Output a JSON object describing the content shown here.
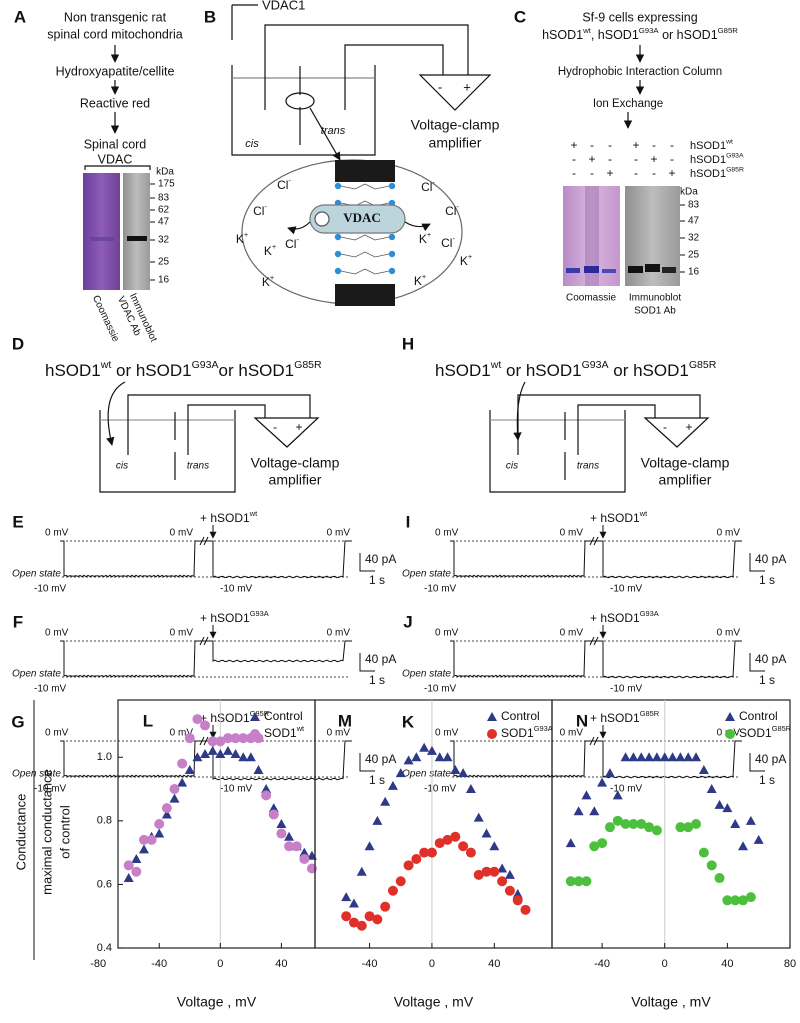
{
  "panels": {
    "A": {
      "letter": "A",
      "lines": [
        "Non transgenic rat",
        "spinal cord mitochondria",
        "Hydroxyapatite/cellite",
        "Reactive red",
        "Spinal cord",
        "VDAC"
      ],
      "kda": "kDa",
      "markers": [
        175,
        83,
        62,
        47,
        32,
        25,
        16
      ],
      "lanes": [
        "Coomassie",
        "Immunoblot",
        "VDAC Ab"
      ]
    },
    "B": {
      "letter": "B",
      "electrode": "VDAC1",
      "cis": "cis",
      "trans": "trans",
      "minus": "-",
      "plus": "+",
      "amplifier": [
        "Voltage-clamp",
        "amplifier"
      ],
      "channel": "VDAC",
      "ions": [
        {
          "text": "Cl",
          "sup": "-"
        },
        {
          "text": "Cl",
          "sup": "-"
        },
        {
          "text": "K",
          "sup": "+"
        },
        {
          "text": "K",
          "sup": "+"
        },
        {
          "text": "Cl",
          "sup": "-"
        },
        {
          "text": "K",
          "sup": "+"
        },
        {
          "text": "Cl",
          "sup": "-"
        },
        {
          "text": "Cl",
          "sup": "-"
        },
        {
          "text": "K",
          "sup": "+"
        },
        {
          "text": "Cl",
          "sup": "-"
        },
        {
          "text": "K",
          "sup": "+"
        },
        {
          "text": "K",
          "sup": "+"
        }
      ]
    },
    "C": {
      "letter": "C",
      "line1": "Sf-9 cells expressing",
      "line2": [
        {
          "text": "hSOD1",
          "sup": "wt"
        },
        {
          "text": ", hSOD1",
          "sup": "G93A"
        },
        {
          "text": " or hSOD1",
          "sup": "G85R"
        }
      ],
      "steps": [
        "Hydrophobic Interaction Column",
        "Ion Exchange"
      ],
      "signs": [
        [
          "+",
          "-",
          "-",
          "+",
          "-",
          "-"
        ],
        [
          "-",
          "+",
          "-",
          "-",
          "+",
          "-"
        ],
        [
          "-",
          "-",
          "+",
          "-",
          "-",
          "+"
        ]
      ],
      "rows": [
        {
          "text": "hSOD1",
          "sup": "wt"
        },
        {
          "text": "hSOD1",
          "sup": "G93A"
        },
        {
          "text": "hSOD1",
          "sup": "G85R"
        }
      ],
      "kda": "kDa",
      "markers": [
        83,
        47,
        32,
        25,
        16
      ],
      "lanes": [
        "Coomassie",
        "Immunoblot",
        "SOD1 Ab"
      ]
    },
    "D": {
      "letter": "D",
      "title": [
        {
          "text": "hSOD1",
          "sup": "wt"
        },
        {
          "text": " or  hSOD1",
          "sup": "G93A"
        },
        {
          "text": "or  hSOD1",
          "sup": "G85R"
        }
      ],
      "cis": "cis",
      "trans": "trans",
      "minus": "-",
      "plus": "+",
      "amplifier": [
        "Voltage-clamp",
        "amplifier"
      ]
    },
    "H": {
      "letter": "H",
      "title": [
        {
          "text": "hSOD1",
          "sup": "wt"
        },
        {
          "text": "  or  hSOD1",
          "sup": "G93A"
        },
        {
          "text": "  or hSOD1",
          "sup": "G85R"
        }
      ],
      "cis": "cis",
      "trans": "trans",
      "minus": "-",
      "plus": "+",
      "amplifier": [
        "Voltage-clamp",
        "amplifier"
      ]
    },
    "traces": [
      {
        "letter": "E",
        "zero": [
          "0 mV",
          "0 mV",
          "0 mV"
        ],
        "minus10": [
          "-10 mV",
          "-10 mV"
        ],
        "open": "Open state",
        "addition": {
          "text": "+ hSOD1",
          "sup": "wt"
        },
        "scale": [
          "40 pA",
          "1 s"
        ]
      },
      {
        "letter": "F",
        "zero": [
          "0 mV",
          "0 mV",
          "0 mV"
        ],
        "minus10": [
          "-10 mV"
        ],
        "open": "Open state",
        "addition": {
          "text": "+ hSOD1",
          "sup": "G93A"
        },
        "scale": [
          "40 pA",
          "1 s"
        ]
      },
      {
        "letter": "G",
        "zero": [
          "0 mV",
          "0 mV",
          "0 mV"
        ],
        "minus10": [
          "-10 mV",
          "-10 mV"
        ],
        "open": "Open state",
        "addition": {
          "text": "+ hSOD1",
          "sup": "G85R"
        },
        "scale": [
          "40 pA",
          "1 s"
        ]
      },
      {
        "letter": "I",
        "zero": [
          "0 mV",
          "0 mV",
          "0 mV"
        ],
        "minus10": [
          "-10 mV",
          "-10 mV"
        ],
        "open": "Open state",
        "addition": {
          "text": "+ hSOD1",
          "sup": "wt"
        },
        "scale": [
          "40 pA",
          "1 s"
        ]
      },
      {
        "letter": "J",
        "zero": [
          "0 mV",
          "0 mV",
          "0 mV"
        ],
        "minus10": [
          "-10 mV",
          "-10 mV"
        ],
        "open": "Open state",
        "addition": {
          "text": "+ hSOD1",
          "sup": "G93A"
        },
        "scale": [
          "40 pA",
          "1 s"
        ]
      },
      {
        "letter": "K",
        "zero": [
          "0 mV",
          "0 mV",
          "0 mV"
        ],
        "minus10": [
          "-10 mV",
          "-10 mV"
        ],
        "open": "Open state",
        "addition": {
          "text": "+ hSOD1",
          "sup": "G85R"
        },
        "scale": [
          "40 pA",
          "1 s"
        ]
      }
    ]
  },
  "chart_data": [
    {
      "type": "scatter",
      "letter": "L",
      "ylabel": [
        "Conductance",
        "maximal conductance",
        "of control"
      ],
      "xlabel": "Voltage , mV",
      "xlim": [
        -67,
        62
      ],
      "ylim": [
        0.4,
        1.18
      ],
      "xticks": [
        -80,
        -40,
        0,
        40
      ],
      "yticks": [
        0.4,
        0.6,
        0.8,
        {
          "value": 1,
          "label": "1.0"
        }
      ],
      "series": [
        {
          "name": "Control",
          "color": "#2e3a87",
          "marker": "triangle",
          "x": [
            -60,
            -55,
            -50,
            -45,
            -40,
            -35,
            -30,
            -25,
            -20,
            -15,
            -10,
            -5,
            0,
            5,
            10,
            15,
            20,
            25,
            30,
            35,
            40,
            45,
            50,
            55,
            60
          ],
          "values": [
            0.62,
            0.68,
            0.71,
            0.75,
            0.76,
            0.82,
            0.87,
            0.92,
            0.96,
            1.0,
            1.01,
            1.02,
            1.01,
            1.02,
            1.01,
            1.0,
            1.0,
            0.96,
            0.9,
            0.84,
            0.79,
            0.75,
            0.72,
            0.7,
            0.69
          ]
        },
        {
          "name": {
            "text": "SOD1",
            "sup": "wt"
          },
          "color": "#c77fc7",
          "marker": "circle",
          "x": [
            -60,
            -55,
            -50,
            -45,
            -40,
            -35,
            -30,
            -25,
            -20,
            -15,
            -10,
            -5,
            0,
            5,
            10,
            15,
            20,
            25,
            30,
            35,
            40,
            45,
            50,
            55,
            60
          ],
          "values": [
            0.66,
            0.64,
            0.74,
            0.74,
            0.79,
            0.84,
            0.9,
            0.98,
            1.06,
            1.12,
            1.1,
            1.05,
            1.05,
            1.06,
            1.06,
            1.06,
            1.06,
            1.06,
            0.88,
            0.82,
            0.76,
            0.72,
            0.72,
            0.68,
            0.65
          ]
        }
      ]
    },
    {
      "type": "scatter",
      "letter": "M",
      "xlabel": "Voltage , mV",
      "xlim": [
        -75,
        77
      ],
      "ylim": [
        0.4,
        1.18
      ],
      "xticks": [
        -40,
        0,
        40
      ],
      "series": [
        {
          "name": "Control",
          "color": "#2e3a87",
          "marker": "triangle",
          "x": [
            -55,
            -50,
            -45,
            -40,
            -35,
            -30,
            -25,
            -20,
            -15,
            -10,
            -5,
            0,
            5,
            10,
            15,
            20,
            25,
            30,
            35,
            40,
            45,
            50,
            55
          ],
          "values": [
            0.56,
            0.54,
            0.64,
            0.72,
            0.8,
            0.86,
            0.91,
            0.95,
            0.99,
            1.0,
            1.03,
            1.02,
            1.0,
            1.0,
            0.96,
            0.95,
            0.9,
            0.81,
            0.76,
            0.72,
            0.65,
            0.63,
            0.57
          ]
        },
        {
          "name": {
            "text": "SOD1",
            "sup": "G93A"
          },
          "color": "#e0302a",
          "marker": "circle",
          "x": [
            -55,
            -50,
            -45,
            -40,
            -35,
            -30,
            -25,
            -20,
            -15,
            -10,
            -5,
            0,
            5,
            10,
            15,
            20,
            25,
            30,
            35,
            40,
            45,
            50,
            55,
            60
          ],
          "values": [
            0.5,
            0.48,
            0.47,
            0.5,
            0.49,
            0.53,
            0.58,
            0.61,
            0.66,
            0.68,
            0.7,
            0.7,
            0.73,
            0.74,
            0.75,
            0.72,
            0.7,
            0.63,
            0.64,
            0.64,
            0.61,
            0.58,
            0.55,
            0.52
          ]
        }
      ]
    },
    {
      "type": "scatter",
      "letter": "N",
      "xlabel": "Voltage , mV",
      "xlim": [
        -72,
        80
      ],
      "ylim": [
        0.4,
        1.18
      ],
      "xticks": [
        -40,
        0,
        40,
        80
      ],
      "series": [
        {
          "name": "Control",
          "color": "#2e3a87",
          "marker": "triangle",
          "x": [
            -60,
            -55,
            -50,
            -45,
            -40,
            -35,
            -30,
            -25,
            -20,
            -15,
            -10,
            -5,
            0,
            5,
            10,
            15,
            20,
            25,
            30,
            35,
            40,
            45,
            50,
            55,
            60
          ],
          "values": [
            0.73,
            0.83,
            0.88,
            0.83,
            0.92,
            0.95,
            0.88,
            1.0,
            1.0,
            1.0,
            1.0,
            1.0,
            1.0,
            1.0,
            1.0,
            1.0,
            1.0,
            0.96,
            0.9,
            0.85,
            0.84,
            0.79,
            0.72,
            0.8,
            0.74
          ]
        },
        {
          "name": {
            "text": "SOD1",
            "sup": "G85R"
          },
          "color": "#4cbf3c",
          "marker": "circle",
          "x": [
            -60,
            -55,
            -50,
            -45,
            -40,
            -35,
            -30,
            -25,
            -20,
            -15,
            -10,
            -5,
            10,
            15,
            20,
            25,
            30,
            35,
            40,
            45,
            50,
            55
          ],
          "values": [
            0.61,
            0.61,
            0.61,
            0.72,
            0.73,
            0.78,
            0.8,
            0.79,
            0.79,
            0.79,
            0.78,
            0.77,
            0.78,
            0.78,
            0.79,
            0.7,
            0.66,
            0.62,
            0.55,
            0.55,
            0.55,
            0.56
          ]
        }
      ]
    }
  ]
}
